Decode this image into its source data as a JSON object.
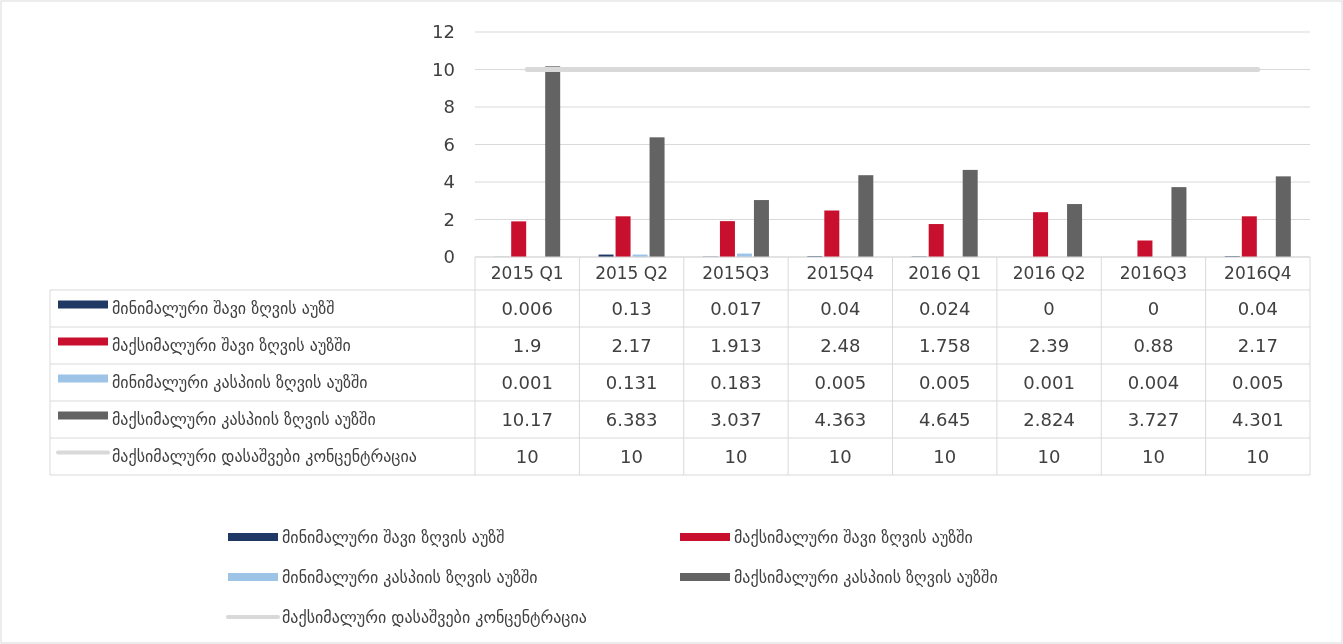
{
  "chart_data": {
    "type": "bar",
    "categories": [
      "2015 Q1",
      "2015 Q2",
      "2015Q3",
      "2015Q4",
      "2016 Q1",
      "2016 Q2",
      "2016Q3",
      "2016Q4"
    ],
    "series": [
      {
        "name": "მინიმალური შავი ზღვის აუზშ",
        "color": "#1f3864",
        "values": [
          0.006,
          0.13,
          0.017,
          0.04,
          0.024,
          0,
          0,
          0.04
        ]
      },
      {
        "name": "მაქსიმალური შავი ზღვის აუზში",
        "color": "#c8102e",
        "values": [
          1.9,
          2.17,
          1.913,
          2.48,
          1.758,
          2.39,
          0.88,
          2.17
        ]
      },
      {
        "name": "მინიმალური კასპიის ზღვის აუზში",
        "color": "#9dc3e6",
        "values": [
          0.001,
          0.131,
          0.183,
          0.005,
          0.005,
          0.001,
          0.004,
          0.005
        ]
      },
      {
        "name": "მაქსიმალური კასპიის ზღვის აუზში",
        "color": "#636363",
        "values": [
          10.17,
          6.383,
          3.037,
          4.363,
          4.645,
          2.824,
          3.727,
          4.301
        ]
      },
      {
        "name": "მაქსიმალური დასაშვები კონცენტრაცია",
        "color": "#d9d9d9",
        "type": "line",
        "values": [
          10,
          10,
          10,
          10,
          10,
          10,
          10,
          10
        ]
      }
    ],
    "ylim": [
      0,
      12
    ],
    "yticks": [
      0,
      2,
      4,
      6,
      8,
      10,
      12
    ],
    "grid": "y",
    "data_labels": true,
    "legend": "bottom"
  }
}
